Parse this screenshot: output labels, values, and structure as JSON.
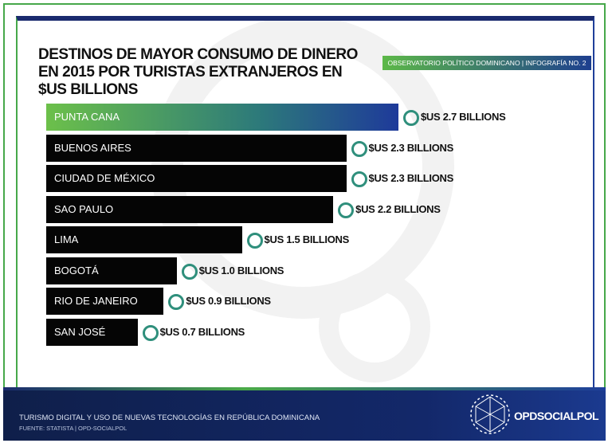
{
  "chart_data": {
    "type": "bar",
    "title": "DESTINOS DE MAYOR CONSUMO DE DINERO EN 2015 POR TURISTAS EXTRANJEROS EN $US BILLIONS",
    "badge": "OBSERVATORIO POLÍTICO DOMINICANO | INFOGRAFÍA NO. 2",
    "categories": [
      "PUNTA CANA",
      "BUENOS AIRES",
      "CIUDAD DE MÉXICO",
      "SAO PAULO",
      "LIMA",
      "BOGOTÁ",
      "RIO DE JANEIRO",
      "SAN JOSÉ"
    ],
    "values": [
      2.7,
      2.3,
      2.3,
      2.2,
      1.5,
      1.0,
      0.9,
      0.7
    ],
    "value_labels": [
      "$US 2.7 BILLIONS",
      "$US 2.3 BILLIONS",
      "$US 2.3 BILLIONS",
      "$US 2.2 BILLIONS",
      "$US 1.5 BILLIONS",
      "$US 1.0 BILLIONS",
      "$US 0.9 BILLIONS",
      "$US 0.7 BILLIONS"
    ],
    "color": "#050505",
    "footer": "TURISMO DIGITAL Y USO DE NUEVAS TECNOLOGÍAS EN REPÚBLICA DOMINICANA",
    "source": "FUENTE: STATISTA | OPD-SOCIALPOL",
    "logo": "OPDSOCIALPOL"
  }
}
